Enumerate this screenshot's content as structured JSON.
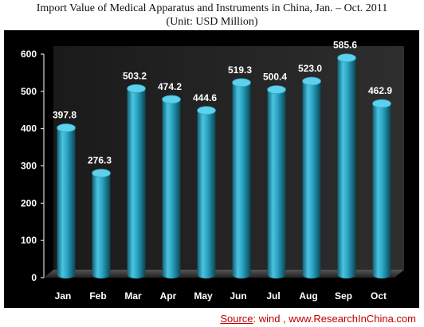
{
  "title": "Import Value of Medical Apparatus and Instruments in China, Jan. – Oct. 2011",
  "subtitle": "(Unit: USD Million)",
  "source": {
    "label": "Source",
    "text": ": wind , www.ResearchInChina.com"
  },
  "colors": {
    "background": "#000000",
    "bar": "#2aa5c4",
    "text": "#ffffff",
    "source": "#c00000"
  },
  "chart_data": {
    "type": "bar",
    "title": "Import Value of Medical Apparatus and Instruments in China, Jan. – Oct. 2011",
    "subtitle": "(Unit: USD Million)",
    "categories": [
      "Jan",
      "Feb",
      "Mar",
      "Apr",
      "May",
      "Jun",
      "Jul",
      "Aug",
      "Sep",
      "Oct"
    ],
    "values": [
      397.8,
      276.3,
      503.2,
      474.2,
      444.6,
      519.3,
      500.4,
      523.0,
      585.6,
      462.9
    ],
    "value_labels": [
      "397.8",
      "276.3",
      "503.2",
      "474.2",
      "444.6",
      "519.3",
      "500.4",
      "523.0",
      "585.6",
      "462.9"
    ],
    "yticks": [
      0,
      100,
      200,
      300,
      400,
      500,
      600
    ],
    "ylim": [
      0,
      600
    ],
    "xlabel": "",
    "ylabel": "",
    "grid": false,
    "legend": "none",
    "style": "3d-cylinder"
  }
}
